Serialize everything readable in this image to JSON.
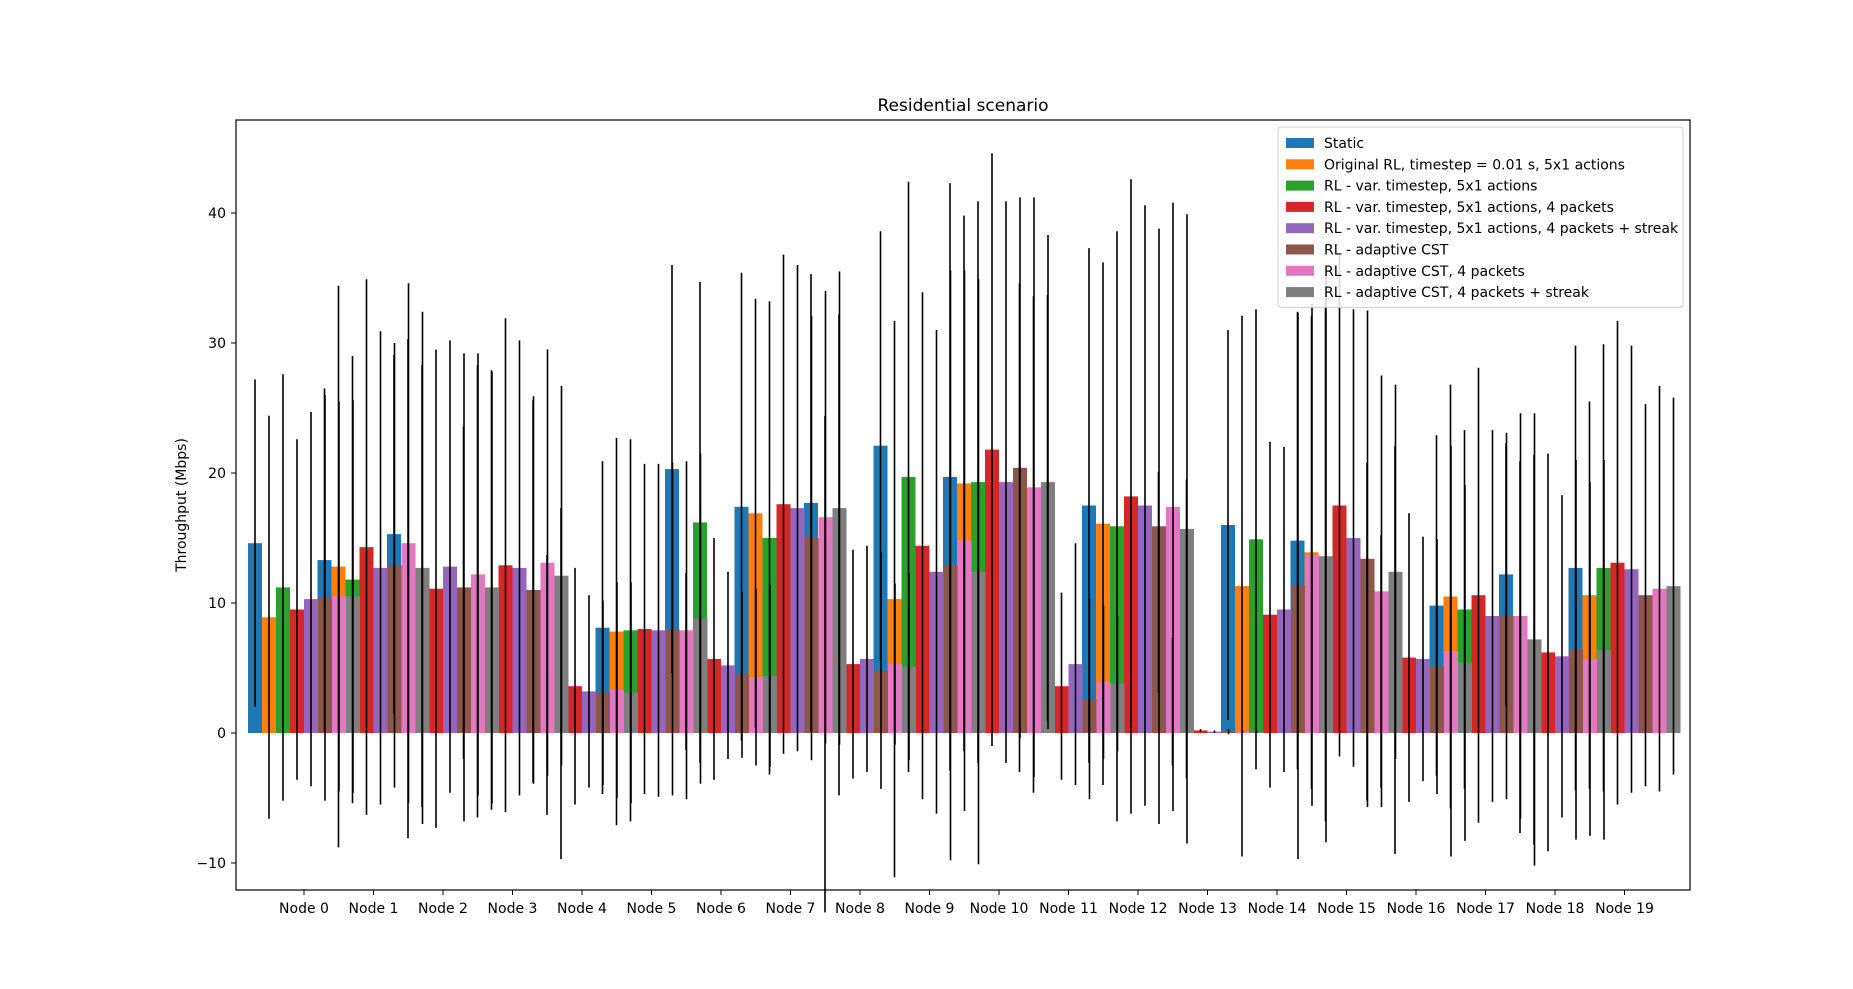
{
  "chart_data": {
    "type": "bar",
    "title": "Residential scenario",
    "xlabel": "",
    "ylabel": "Throughput (Mbps)",
    "ylim": [
      -12,
      47
    ],
    "yticks": [
      -10,
      0,
      10,
      20,
      30,
      40
    ],
    "grid": false,
    "legend_position": "top-right",
    "categories": [
      "Node 0",
      "Node 1",
      "Node 2",
      "Node 3",
      "Node 4",
      "Node 5",
      "Node 6",
      "Node 7",
      "Node 8",
      "Node 9",
      "Node 10",
      "Node 11",
      "Node 12",
      "Node 13",
      "Node 14",
      "Node 15",
      "Node 16",
      "Node 17",
      "Node 18",
      "Node 19"
    ],
    "series": [
      {
        "name": "Static",
        "color": "#1f77b4",
        "values": [
          14.6,
          13.3,
          15.3,
          10.8,
          10.9,
          8.1,
          20.3,
          17.4,
          17.7,
          22.1,
          19.7,
          15.8,
          17.5,
          11.6,
          16.0,
          14.8,
          7.8,
          9.8,
          12.2,
          12.7
        ],
        "errors": [
          12.6,
          13.2,
          13.8,
          12.8,
          14.7,
          12.8,
          15.7,
          18.0,
          17.6,
          16.5,
          22.6,
          18.8,
          19.8,
          8.5,
          15.0,
          17.6,
          13.0,
          13.1,
          10.1,
          17.1
        ]
      },
      {
        "name": "Original RL, timestep = 0.01 s, 5x1 actions",
        "color": "#ff7f0e",
        "values": [
          8.9,
          12.8,
          11.1,
          10.9,
          3.7,
          7.8,
          5.5,
          16.9,
          5.3,
          10.3,
          19.2,
          14.5,
          16.1,
          2.4,
          11.3,
          13.9,
          5.5,
          10.5,
          6.6,
          10.6
        ],
        "errors": [
          15.5,
          21.6,
          19.2,
          17.4,
          10.0,
          14.9,
          6.8,
          16.5,
          19.1,
          21.4,
          20.6,
          19.1,
          20.1,
          4.9,
          20.8,
          18.2,
          9.7,
          16.3,
          14.3,
          14.9
        ]
      },
      {
        "name": "RL - var. timestep, 5x1 actions",
        "color": "#2ca02c",
        "values": [
          11.2,
          11.8,
          11.3,
          11.0,
          3.8,
          7.9,
          16.2,
          15.0,
          13.7,
          19.7,
          19.3,
          17.3,
          15.9,
          8.0,
          14.9,
          13.5,
          6.4,
          9.5,
          6.4,
          12.7
        ],
        "errors": [
          16.4,
          17.2,
          17.0,
          16.9,
          13.5,
          14.7,
          18.5,
          18.2,
          18.5,
          22.7,
          21.6,
          16.4,
          22.7,
          11.5,
          17.7,
          20.3,
          15.7,
          13.8,
          15.0,
          17.2
        ]
      },
      {
        "name": "RL - var. timestep, 5x1 actions, 4 packets",
        "color": "#d62728",
        "values": [
          9.5,
          14.3,
          11.1,
          12.9,
          3.6,
          8.0,
          5.7,
          17.6,
          5.3,
          14.4,
          21.8,
          3.6,
          18.2,
          0.2,
          9.1,
          17.5,
          5.8,
          10.6,
          6.2,
          13.1
        ],
        "errors": [
          13.1,
          20.6,
          18.4,
          19.0,
          9.1,
          12.7,
          9.3,
          19.2,
          8.8,
          19.5,
          22.8,
          7.2,
          24.4,
          0.1,
          13.3,
          19.3,
          11.1,
          17.5,
          15.3,
          18.6
        ]
      },
      {
        "name": "RL - var. timestep, 5x1 actions, 4 packets + streak",
        "color": "#9467bd",
        "values": [
          10.3,
          12.7,
          12.8,
          12.7,
          3.2,
          7.9,
          5.2,
          17.3,
          5.7,
          12.4,
          19.3,
          5.3,
          17.5,
          0.1,
          9.5,
          15.0,
          5.7,
          9.0,
          5.9,
          12.6
        ],
        "errors": [
          14.4,
          18.2,
          17.4,
          17.5,
          7.4,
          12.8,
          7.2,
          18.7,
          8.7,
          18.6,
          21.6,
          9.3,
          23.1,
          0.1,
          12.5,
          17.6,
          9.4,
          14.3,
          12.4,
          17.2
        ]
      },
      {
        "name": "RL - adaptive CST",
        "color": "#8c564b",
        "values": [
          10.4,
          12.9,
          11.2,
          11.0,
          3.1,
          8.0,
          4.5,
          15.0,
          4.8,
          12.9,
          20.4,
          2.6,
          15.9,
          0.1,
          11.3,
          13.4,
          5.1,
          9.0,
          6.4,
          10.6
        ],
        "errors": [
          15.6,
          17.1,
          18.0,
          14.9,
          7.1,
          12.8,
          6.4,
          17.1,
          9.1,
          22.7,
          20.8,
          7.7,
          22.9,
          0.2,
          21.0,
          19.1,
          9.8,
          14.1,
          14.6,
          14.7
        ]
      },
      {
        "name": "RL - adaptive CST, 4 packets",
        "color": "#e377c2",
        "values": [
          10.5,
          14.6,
          12.2,
          13.1,
          3.3,
          7.9,
          4.3,
          16.6,
          5.3,
          14.8,
          18.9,
          3.9,
          17.4,
          0.1,
          13.7,
          10.9,
          6.3,
          9.0,
          5.7,
          11.1
        ],
        "errors": [
          15.0,
          20.0,
          17.0,
          16.4,
          8.3,
          13.0,
          6.8,
          17.4,
          6.2,
          20.8,
          22.3,
          5.9,
          23.4,
          0.1,
          19.3,
          16.6,
          15.8,
          15.6,
          13.6,
          15.6
        ]
      },
      {
        "name": "RL - adaptive CST, 4 packets + streak",
        "color": "#7f7f7f",
        "values": [
          10.5,
          12.7,
          11.2,
          12.1,
          3.1,
          8.8,
          4.4,
          17.3,
          5.1,
          12.4,
          19.3,
          3.8,
          15.7,
          0.1,
          13.6,
          12.4,
          5.4,
          7.2,
          6.4,
          11.3
        ],
        "errors": [
          15.1,
          19.7,
          16.6,
          14.6,
          8.5,
          12.7,
          7.0,
          18.2,
          7.2,
          22.5,
          19.0,
          5.2,
          24.2,
          0.1,
          22.0,
          14.4,
          13.7,
          17.4,
          14.6,
          14.5
        ]
      }
    ]
  }
}
